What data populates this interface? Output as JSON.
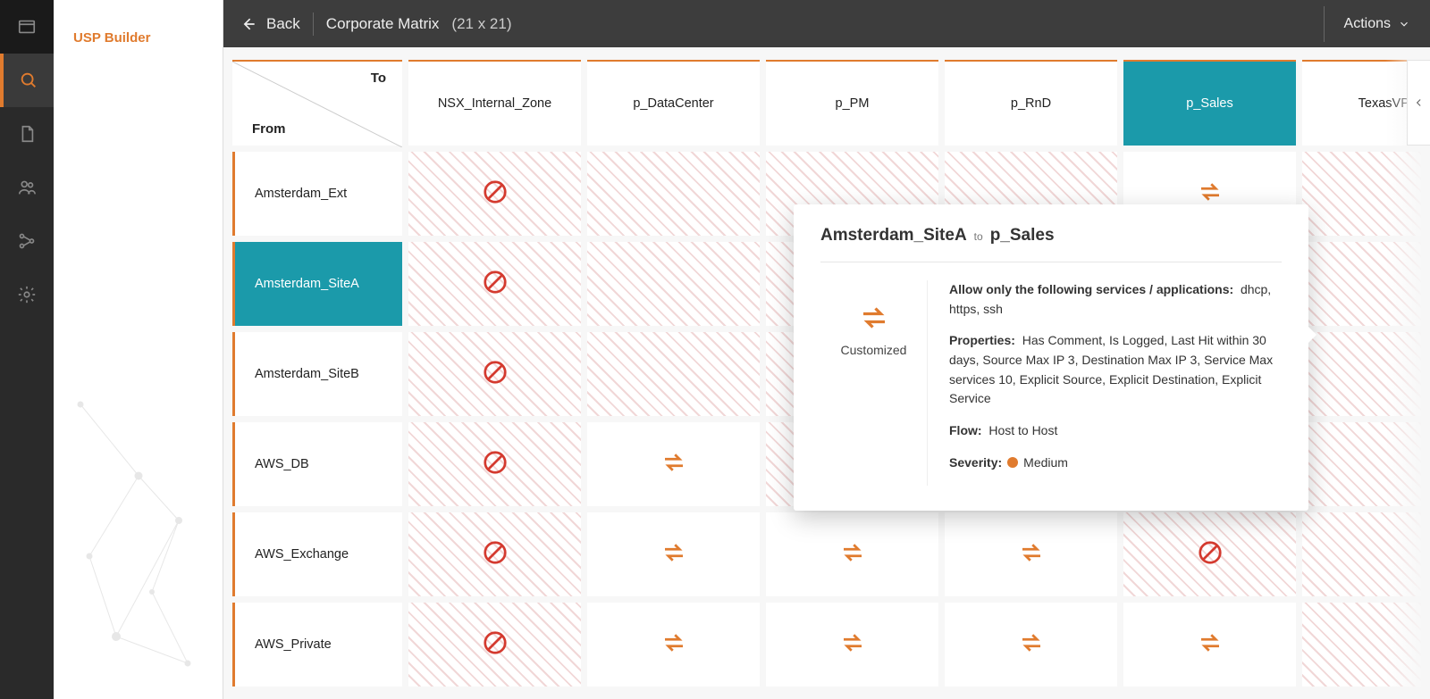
{
  "colors": {
    "accent": "#e07b2e",
    "highlight": "#1b9aaa",
    "block": "#d43a2f",
    "rail_bg": "#2a2a2a",
    "topbar_bg": "#3d3d3d"
  },
  "rail": {
    "items": [
      {
        "name": "app-icon",
        "active": false
      },
      {
        "name": "search-icon",
        "active": true
      },
      {
        "name": "document-icon",
        "active": false
      },
      {
        "name": "users-icon",
        "active": false
      },
      {
        "name": "flow-icon",
        "active": false
      },
      {
        "name": "gear-icon",
        "active": false
      }
    ]
  },
  "sidebar": {
    "title": "USP Builder"
  },
  "topbar": {
    "back_label": "Back",
    "title": "Corporate Matrix",
    "dimensions": "(21 x 21)",
    "actions_label": "Actions"
  },
  "matrix": {
    "corner_to": "To",
    "corner_from": "From",
    "columns": [
      "NSX_Internal_Zone",
      "p_DataCenter",
      "p_PM",
      "p_RnD",
      "p_Sales",
      "TexasVPN"
    ],
    "columns_highlight_index": 4,
    "rows": [
      {
        "label": "Amsterdam_Ext",
        "cells": [
          "block",
          null,
          null,
          null,
          "swap",
          null
        ]
      },
      {
        "label": "Amsterdam_SiteA",
        "highlight": true,
        "cells": [
          "block",
          null,
          null,
          null,
          "swap_selected",
          null
        ]
      },
      {
        "label": "Amsterdam_SiteB",
        "cells": [
          "block",
          null,
          null,
          null,
          "block",
          null
        ]
      },
      {
        "label": "AWS_DB",
        "cells": [
          "block",
          "swap",
          "block",
          "block",
          "block",
          null
        ]
      },
      {
        "label": "AWS_Exchange",
        "cells": [
          "block",
          "swap",
          "swap",
          "swap",
          "block",
          null
        ]
      },
      {
        "label": "AWS_Private",
        "cells": [
          "block",
          "swap",
          "swap",
          "swap",
          "swap",
          null
        ]
      }
    ]
  },
  "popover": {
    "from": "Amsterdam_SiteA",
    "to_keyword": "to",
    "to": "p_Sales",
    "customized_label": "Customized",
    "allow_label": "Allow only the following services / applications:",
    "allow_value": "dhcp, https, ssh",
    "properties_label": "Properties:",
    "properties_value": "Has Comment, Is Logged, Last Hit within 30 days, Source Max IP 3, Destination Max IP 3, Service Max services 10, Explicit Source, Explicit Destination, Explicit Service",
    "flow_label": "Flow:",
    "flow_value": "Host to Host",
    "severity_label": "Severity:",
    "severity_value": "Medium",
    "severity_color": "#e07b2e"
  }
}
